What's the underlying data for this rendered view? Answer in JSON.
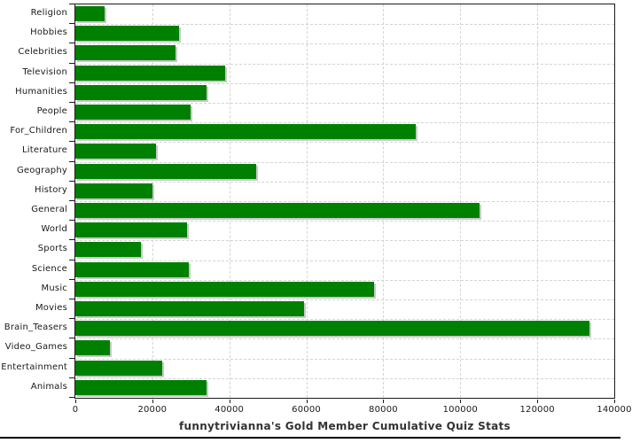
{
  "chart_data": {
    "type": "bar",
    "orientation": "horizontal",
    "title": "funnytrivianna's Gold Member Cumulative Quiz Stats",
    "categories": [
      "Religion",
      "Hobbies",
      "Celebrities",
      "Television",
      "Humanities",
      "People",
      "For_Children",
      "Literature",
      "Geography",
      "History",
      "General",
      "World",
      "Sports",
      "Science",
      "Music",
      "Movies",
      "Brain_Teasers",
      "Video_Games",
      "Entertainment",
      "Animals"
    ],
    "values": [
      7500,
      27000,
      26000,
      39000,
      34000,
      30000,
      88500,
      21000,
      47000,
      20000,
      105000,
      29000,
      17000,
      29500,
      77500,
      59500,
      133500,
      9000,
      22500,
      34000
    ],
    "xlabel": "",
    "ylabel": "",
    "xlim": [
      0,
      140000
    ],
    "x_ticks": [
      0,
      20000,
      40000,
      60000,
      80000,
      100000,
      120000,
      140000
    ],
    "x_tick_labels": [
      "0",
      "20000",
      "40000",
      "60000",
      "80000",
      "100000",
      "120000",
      "140000"
    ],
    "grid": "dashed vertical at each x tick, dashed horizontal at each category boundary",
    "legend": "none",
    "bar_color": "#008000",
    "shadow_color": "#c9c9c9",
    "grid_color": "#d4d4d4",
    "axis_color": "#1a1a1a",
    "text_color": "#1a1a1a",
    "title_color": "#333333"
  }
}
